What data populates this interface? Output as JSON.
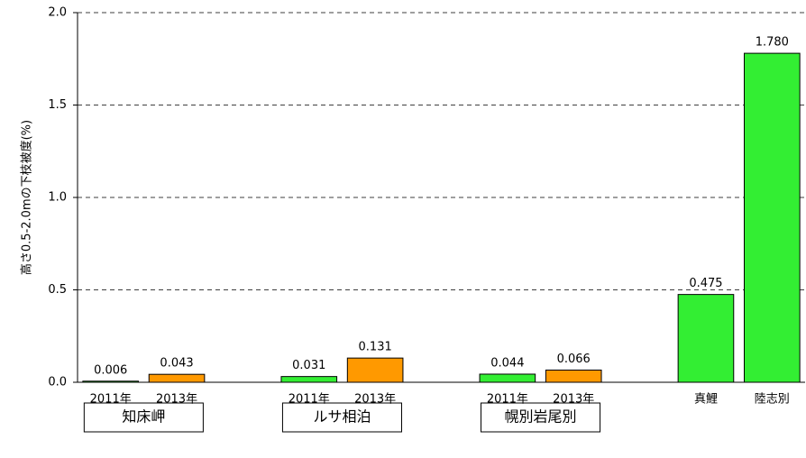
{
  "chart_data": {
    "type": "bar",
    "y_label": "高さ0.5-2.0mの下枝被度(%)",
    "categories": [
      "2011年",
      "2013年",
      null,
      "2011年",
      "2013年",
      null,
      "2011年",
      "2013年",
      null,
      "真鯉",
      "陸志別"
    ],
    "values": [
      0.006,
      0.043,
      null,
      0.031,
      0.131,
      null,
      0.044,
      0.066,
      null,
      0.475,
      1.78
    ],
    "value_labels": [
      "0.006",
      "0.043",
      null,
      "0.031",
      "0.131",
      null,
      "0.044",
      "0.066",
      null,
      "0.475",
      "1.780"
    ],
    "colors": [
      "#33ee33",
      "#ff9900",
      null,
      "#33ee33",
      "#ff9900",
      null,
      "#33ee33",
      "#ff9900",
      null,
      "#33ee33",
      "#33ee33"
    ],
    "groups": [
      "知床岬",
      "ルサ相泊",
      "幌別岩尾別"
    ],
    "ylim": [
      0,
      2.0
    ],
    "yticks": [
      {
        "value": 0,
        "label": "0.0"
      },
      {
        "value": 0.5,
        "label": "0.5"
      },
      {
        "value": 1.0,
        "label": "1.0"
      },
      {
        "value": 1.5,
        "label": "1.5"
      },
      {
        "value": 2.0,
        "label": "2.0"
      }
    ],
    "grid": true
  }
}
